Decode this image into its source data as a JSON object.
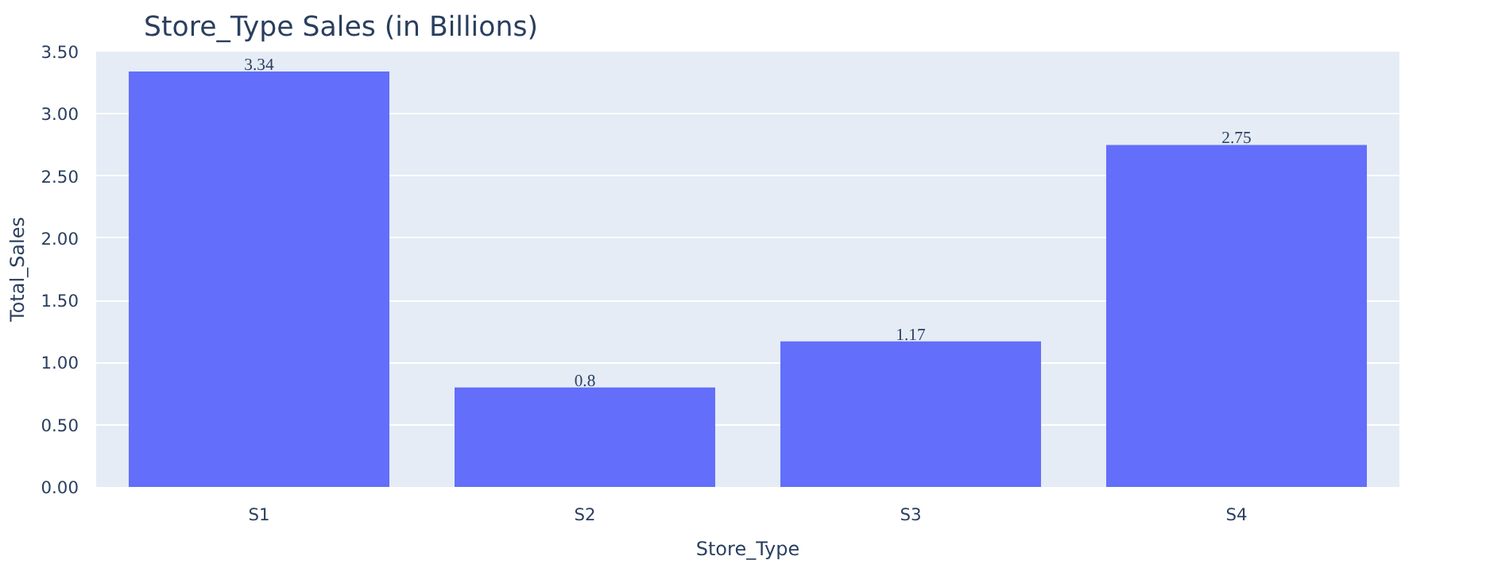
{
  "chart_data": {
    "type": "bar",
    "title": "Store_Type Sales (in Billions)",
    "xlabel": "Store_Type",
    "ylabel": "Total_Sales",
    "categories": [
      "S1",
      "S2",
      "S3",
      "S4"
    ],
    "values": [
      3.34,
      0.8,
      1.17,
      2.75
    ],
    "color": "#636efa",
    "ylim": [
      0,
      3.5
    ],
    "yticks": [
      {
        "value": 0,
        "label": "0.00"
      },
      {
        "value": 0.5,
        "label": "0.50"
      },
      {
        "value": 1,
        "label": "1.00"
      },
      {
        "value": 1.5,
        "label": "1.50"
      },
      {
        "value": 2,
        "label": "2.00"
      },
      {
        "value": 2.5,
        "label": "2.50"
      },
      {
        "value": 3,
        "label": "3.00"
      },
      {
        "value": 3.5,
        "label": "3.50"
      }
    ],
    "grid": "y",
    "data_labels": true
  }
}
